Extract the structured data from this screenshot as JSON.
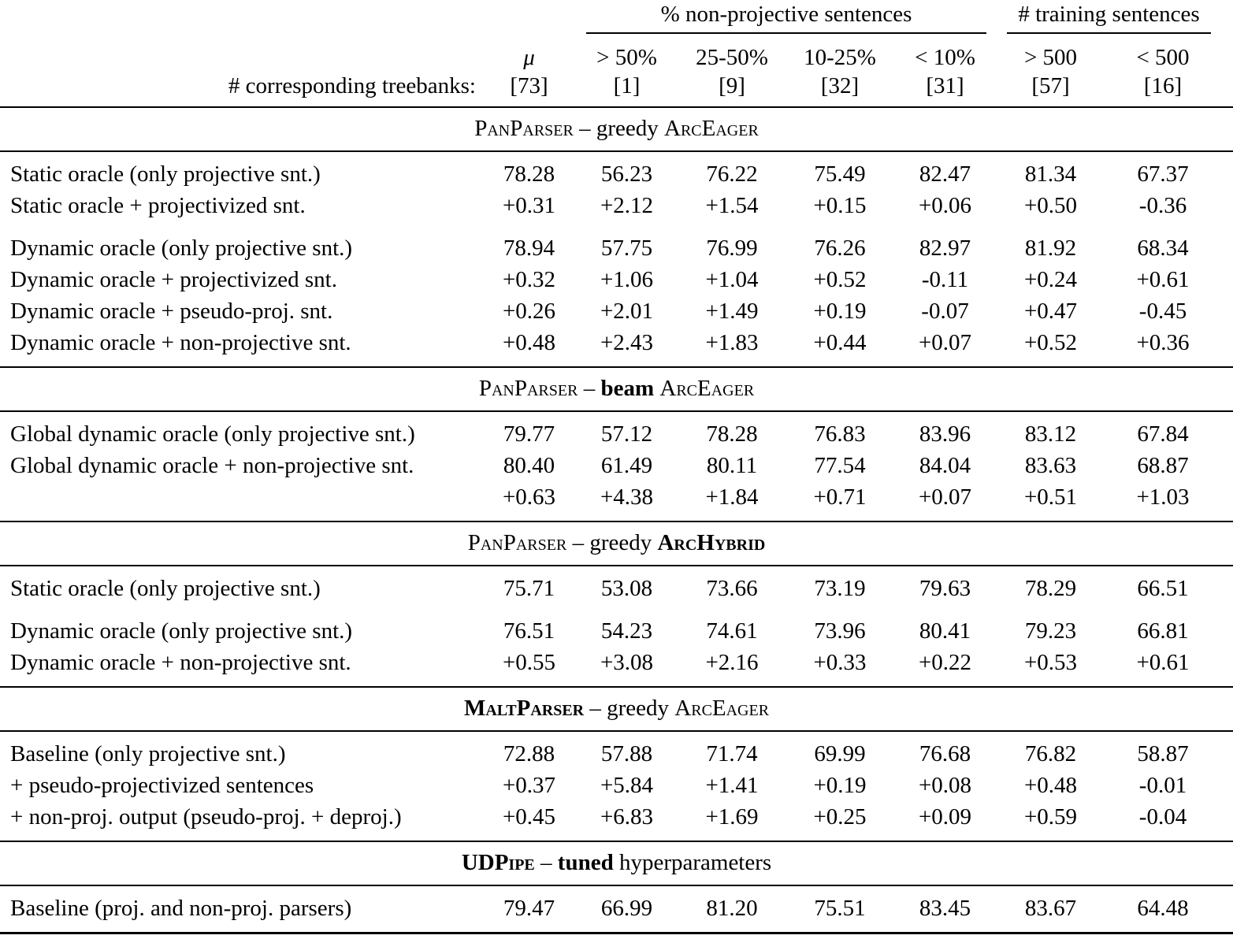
{
  "header": {
    "group_nonprojective": "% non-projective sentences",
    "group_training": "# training sentences",
    "corresponding_label": "# corresponding treebanks:",
    "columns": [
      {
        "top": "μ",
        "count": "[73]"
      },
      {
        "top": "> 50%",
        "count": "[1]"
      },
      {
        "top": "25-50%",
        "count": "[9]"
      },
      {
        "top": "10-25%",
        "count": "[32]"
      },
      {
        "top": "< 10%",
        "count": "[31]"
      },
      {
        "top": "> 500",
        "count": "[57]"
      },
      {
        "top": "< 500",
        "count": "[16]"
      }
    ]
  },
  "sections": [
    {
      "id": "panparser-greedy-arceager",
      "title": [
        {
          "t": "PanParser",
          "sc": true
        },
        {
          "t": " – greedy "
        },
        {
          "t": "ArcEager",
          "sc": true
        }
      ],
      "rows": [
        {
          "label": "Static oracle (only projective snt.)",
          "values": [
            "78.28",
            "56.23",
            "76.22",
            "75.49",
            "82.47",
            "81.34",
            "67.37"
          ]
        },
        {
          "label": "Static oracle + projectivized snt.",
          "values": [
            "+0.31",
            "+2.12",
            "+1.54",
            "+0.15",
            "+0.06",
            "+0.50",
            "-0.36"
          ]
        },
        {
          "gap": true
        },
        {
          "label": "Dynamic oracle (only projective snt.)",
          "values": [
            "78.94",
            "57.75",
            "76.99",
            "76.26",
            "82.97",
            "81.92",
            "68.34"
          ]
        },
        {
          "label": "Dynamic oracle + projectivized snt.",
          "values": [
            "+0.32",
            "+1.06",
            "+1.04",
            "+0.52",
            "-0.11",
            "+0.24",
            "+0.61"
          ]
        },
        {
          "label": "Dynamic oracle + pseudo-proj. snt.",
          "values": [
            "+0.26",
            "+2.01",
            "+1.49",
            "+0.19",
            "-0.07",
            "+0.47",
            "-0.45"
          ]
        },
        {
          "label": "Dynamic oracle + non-projective snt.",
          "values": [
            "+0.48",
            "+2.43",
            "+1.83",
            "+0.44",
            "+0.07",
            "+0.52",
            "+0.36"
          ]
        }
      ]
    },
    {
      "id": "panparser-beam-arceager",
      "title": [
        {
          "t": "PanParser",
          "sc": true
        },
        {
          "t": " – "
        },
        {
          "t": "beam",
          "b": true
        },
        {
          "t": " "
        },
        {
          "t": "ArcEager",
          "sc": true
        }
      ],
      "rows": [
        {
          "label": "Global dynamic oracle (only projective snt.)",
          "values": [
            "79.77",
            "57.12",
            "78.28",
            "76.83",
            "83.96",
            "83.12",
            "67.84"
          ]
        },
        {
          "label": "Global dynamic oracle + non-projective snt.",
          "values": [
            "80.40",
            "61.49",
            "80.11",
            "77.54",
            "84.04",
            "83.63",
            "68.87"
          ]
        },
        {
          "label": "",
          "values": [
            "+0.63",
            "+4.38",
            "+1.84",
            "+0.71",
            "+0.07",
            "+0.51",
            "+1.03"
          ]
        }
      ]
    },
    {
      "id": "panparser-greedy-archybrid",
      "title": [
        {
          "t": "PanParser",
          "sc": true
        },
        {
          "t": " – greedy "
        },
        {
          "t": "ArcHybrid",
          "sc": true,
          "b": true
        }
      ],
      "rows": [
        {
          "label": "Static oracle (only projective snt.)",
          "values": [
            "75.71",
            "53.08",
            "73.66",
            "73.19",
            "79.63",
            "78.29",
            "66.51"
          ]
        },
        {
          "gap": true
        },
        {
          "label": "Dynamic oracle (only projective snt.)",
          "values": [
            "76.51",
            "54.23",
            "74.61",
            "73.96",
            "80.41",
            "79.23",
            "66.81"
          ]
        },
        {
          "label": "Dynamic oracle + non-projective snt.",
          "values": [
            "+0.55",
            "+3.08",
            "+2.16",
            "+0.33",
            "+0.22",
            "+0.53",
            "+0.61"
          ]
        }
      ]
    },
    {
      "id": "maltparser-greedy-arceager",
      "title": [
        {
          "t": "MaltParser",
          "sc": true,
          "b": true
        },
        {
          "t": " – greedy "
        },
        {
          "t": "ArcEager",
          "sc": true
        }
      ],
      "rows": [
        {
          "label": "Baseline (only projective snt.)",
          "values": [
            "72.88",
            "57.88",
            "71.74",
            "69.99",
            "76.68",
            "76.82",
            "58.87"
          ]
        },
        {
          "label": "+ pseudo-projectivized sentences",
          "values": [
            "+0.37",
            "+5.84",
            "+1.41",
            "+0.19",
            "+0.08",
            "+0.48",
            "-0.01"
          ]
        },
        {
          "label": "+ non-proj. output (pseudo-proj. + deproj.)",
          "values": [
            "+0.45",
            "+6.83",
            "+1.69",
            "+0.25",
            "+0.09",
            "+0.59",
            "-0.04"
          ]
        }
      ]
    },
    {
      "id": "udpipe-tuned",
      "title": [
        {
          "t": "UDPipe",
          "sc": true,
          "b": true
        },
        {
          "t": " – "
        },
        {
          "t": "tuned",
          "b": true
        },
        {
          "t": " hyperparameters"
        }
      ],
      "rows": [
        {
          "label": "Baseline (proj. and non-proj. parsers)",
          "values": [
            "79.47",
            "66.99",
            "81.20",
            "75.51",
            "83.45",
            "83.67",
            "64.48"
          ]
        }
      ]
    }
  ]
}
